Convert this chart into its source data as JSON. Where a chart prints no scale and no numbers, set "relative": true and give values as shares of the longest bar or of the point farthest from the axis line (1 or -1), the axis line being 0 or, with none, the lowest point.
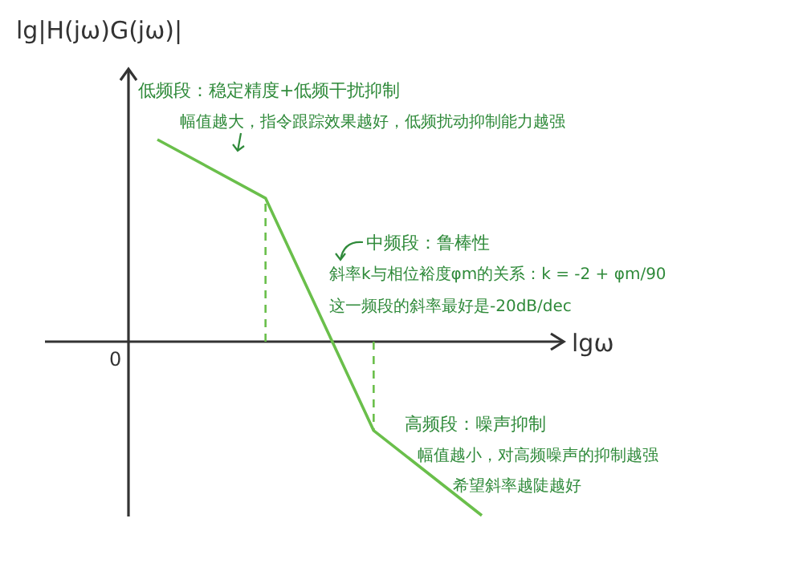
{
  "chart_data": {
    "type": "line",
    "relative": true,
    "ylabel": "lg|H(jω)G(jω)|",
    "xlabel": "lgω",
    "categories": [
      null,
      null,
      null,
      null
    ],
    "series": [
      {
        "color": "#6abf4b",
        "values": [
          1,
          0.71,
          -0.44,
          -0.86
        ]
      }
    ],
    "annotations": [
      "0",
      "低频段：稳定精度+低频干扰抑制",
      "幅值越大，指令跟踪效果越好，低频扰动抑制能力越强",
      "中频段：鲁棒性",
      "斜率k与相位裕度φm的关系：k = -2 + φm/90",
      "这一频段的斜率最好是-20dB/dec",
      "高频段：噪声抑制",
      "幅值越小，对高频噪声的抑制越强",
      "希望斜率越陡越好"
    ],
    "line_style": "solid",
    "marker": "none"
  }
}
